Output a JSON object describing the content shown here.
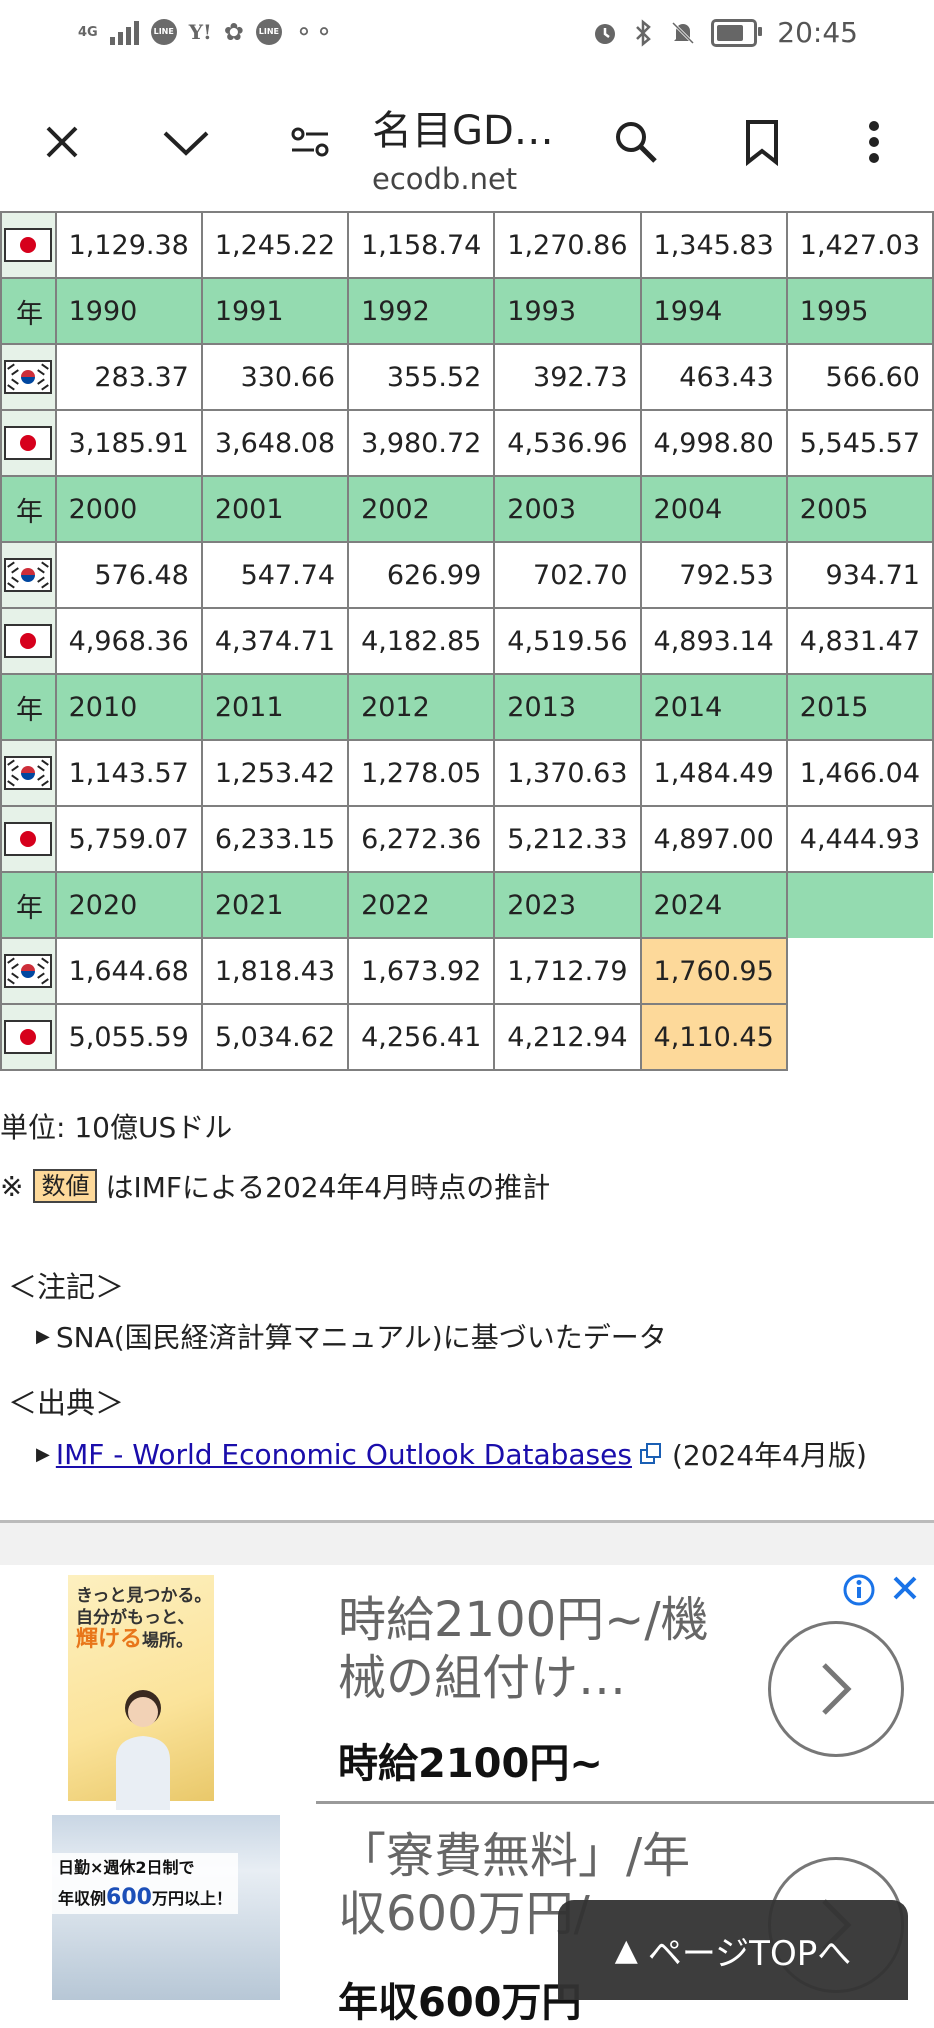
{
  "status_bar": {
    "network": "4G",
    "app_icons": [
      "LINE",
      "Y!",
      "LINE"
    ],
    "time": "20:45"
  },
  "browser": {
    "page_title": "名目GD…",
    "host": "ecodb.net"
  },
  "table": {
    "year_label": "年",
    "rows": [
      {
        "type": "jp",
        "values": [
          "1,129.38",
          "1,245.22",
          "1,158.74",
          "1,270.86",
          "1,345.83",
          "1,427.03"
        ]
      },
      {
        "type": "year",
        "values": [
          "1990",
          "1991",
          "1992",
          "1993",
          "1994",
          "1995"
        ]
      },
      {
        "type": "kr",
        "values": [
          "283.37",
          "330.66",
          "355.52",
          "392.73",
          "463.43",
          "566.60"
        ]
      },
      {
        "type": "jp",
        "values": [
          "3,185.91",
          "3,648.08",
          "3,980.72",
          "4,536.96",
          "4,998.80",
          "5,545.57"
        ]
      },
      {
        "type": "year",
        "values": [
          "2000",
          "2001",
          "2002",
          "2003",
          "2004",
          "2005"
        ]
      },
      {
        "type": "kr",
        "values": [
          "576.48",
          "547.74",
          "626.99",
          "702.70",
          "792.53",
          "934.71"
        ]
      },
      {
        "type": "jp",
        "values": [
          "4,968.36",
          "4,374.71",
          "4,182.85",
          "4,519.56",
          "4,893.14",
          "4,831.47"
        ]
      },
      {
        "type": "year",
        "values": [
          "2010",
          "2011",
          "2012",
          "2013",
          "2014",
          "2015"
        ]
      },
      {
        "type": "kr",
        "values": [
          "1,143.57",
          "1,253.42",
          "1,278.05",
          "1,370.63",
          "1,484.49",
          "1,466.04"
        ]
      },
      {
        "type": "jp",
        "values": [
          "5,759.07",
          "6,233.15",
          "6,272.36",
          "5,212.33",
          "4,897.00",
          "4,444.93"
        ]
      },
      {
        "type": "year",
        "values": [
          "2020",
          "2021",
          "2022",
          "2023",
          "2024"
        ]
      },
      {
        "type": "kr",
        "values": [
          "1,644.68",
          "1,818.43",
          "1,673.92",
          "1,712.79",
          "1,760.95"
        ],
        "estimate_index": 4
      },
      {
        "type": "jp",
        "values": [
          "5,055.59",
          "5,034.62",
          "4,256.41",
          "4,212.94",
          "4,110.45"
        ],
        "estimate_index": 4
      }
    ],
    "estimate_color": "#fdd99a",
    "year_row_color": "#94dbb0"
  },
  "notes": {
    "unit": "単位: 10億USドル",
    "estimate_prefix": "※",
    "estimate_sample": "数値",
    "estimate_text": "はIMFによる2024年4月時点の推計",
    "remarks_heading": "＜注記＞",
    "remarks_item": "SNA(国民経済計算マニュアル)に基づいたデータ",
    "source_heading": "＜出典＞",
    "source_link": "IMF - World Economic Outlook Databases",
    "source_edition": "(2024年4月版)"
  },
  "ad": {
    "image1_text_line1": "きっと見つかる。",
    "image1_text_line2": "自分がもっと、",
    "image1_text_highlight": "輝ける",
    "image1_text_tail": "場所。",
    "headline1": "時給2100円~/機械の組付け…",
    "sub1": "時給2100円~",
    "image2_text_line1": "日勤×週休2日制で",
    "image2_text_prefix": "年収例",
    "image2_text_big": "600",
    "image2_text_suffix": "万円以上！",
    "headline2": "「寮費無料」/年収600万円/",
    "sub2": "年収600万円"
  },
  "page_top": {
    "label": "ページTOPへ"
  }
}
